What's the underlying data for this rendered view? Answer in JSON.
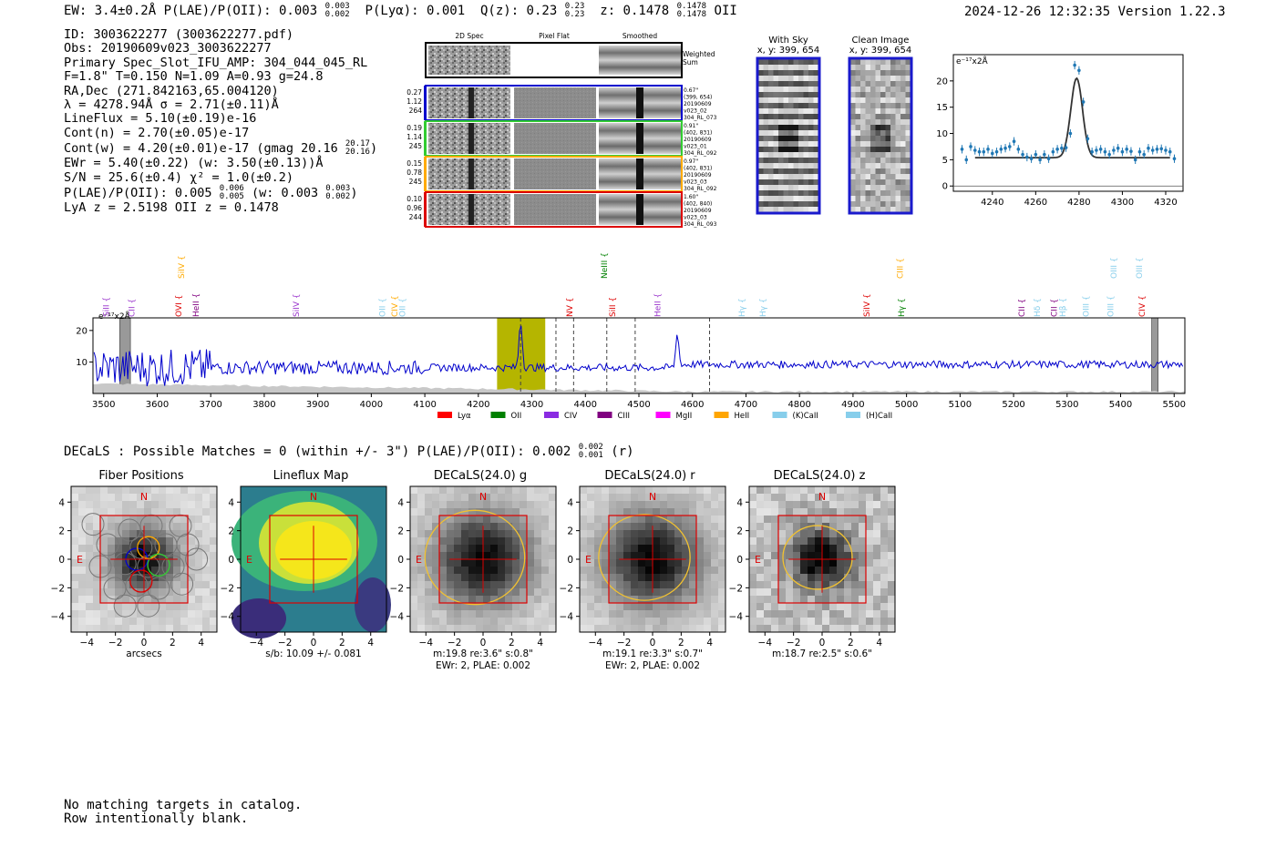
{
  "header": {
    "line": "EW: 3.4±0.2Å  P(LAE)/P(OII): 0.003",
    "plae_hi": "0.003",
    "plae_lo": "0.002",
    "plya": "P(Lyα): 0.001",
    "qz": "Q(z): 0.23",
    "qz_hi": "0.23",
    "qz_lo": "0.23",
    "z": "z: 0.1478",
    "z_hi": "0.1478",
    "z_lo": "0.1478",
    "z_line": "OII",
    "timestamp": "2024-12-26 12:32:35  Version 1.22.3"
  },
  "info": {
    "id": "ID: 3003622277 (3003622277.pdf)",
    "obs": "Obs: 20190609v023_3003622277",
    "primary": "Primary Spec_Slot_IFU_AMP: 304_044_045_RL",
    "params": "F=1.8\"  T=0.150  N=1.09  A=0.93  g=24.8",
    "radec": "RA,Dec (271.842163,65.004120)",
    "lambda": "λ = 4278.94Å   σ = 2.71(±0.11)Å",
    "lineflux": "LineFlux = 5.10(±0.19)e-16",
    "contn": "Cont(n) = 2.70(±0.05)e-17",
    "contw": "Cont(w) = 4.20(±0.01)e-17 (gmag 20.16",
    "gmag_hi": "20.17",
    "gmag_lo": "20.16",
    "ewr": "EWr = 5.40(±0.22) (w: 3.50(±0.13))Å",
    "sn": "S/N = 25.6(±0.4)  χ² = 1.0(±0.2)",
    "plae": "P(LAE)/P(OII): 0.005",
    "plae_hi": "0.006",
    "plae_lo": "0.005",
    "plae_w": "(w: 0.003",
    "plae_w_hi": "0.003",
    "plae_w_lo": "0.002",
    "lyaz": "LyA z = 2.5198   OII z = 0.1478"
  },
  "cutouts": {
    "col_2d": "2D Spec",
    "col_flat": "Pixel Flat",
    "col_smooth": "Smoothed",
    "weighted": "Weighted\nSum",
    "rows": [
      {
        "l1": "0.27",
        "l2": "1.12",
        "l3": "264",
        "r1": "0.67\"",
        "r2": "(399, 654)",
        "r3": "20190609",
        "r4": "v023_02",
        "r5": "304_RL_073",
        "color": "#0000cc"
      },
      {
        "l1": "0.19",
        "l2": "1.14",
        "l3": "245",
        "r1": "0.91\"",
        "r2": "(402, 831)",
        "r3": "20190609",
        "r4": "v023_01",
        "r5": "304_RL_092",
        "color": "#33cc33"
      },
      {
        "l1": "0.15",
        "l2": "0.78",
        "l3": "245",
        "r1": "0.97\"",
        "r2": "(402, 831)",
        "r3": "20190609",
        "r4": "v023_03",
        "r5": "304_RL_092",
        "color": "#ffaa00"
      },
      {
        "l1": "0.10",
        "l2": "0.96",
        "l3": "244",
        "r1": "1.60\"",
        "r2": "(402, 840)",
        "r3": "20190609",
        "r4": "v023_03",
        "r5": "304_RL_093",
        "color": "#dd0000"
      }
    ],
    "with_sky": "With Sky",
    "with_sky_xy": "x, y: 399, 654",
    "clean": "Clean Image",
    "clean_xy": "x, y: 399, 654"
  },
  "chart_data": [
    {
      "type": "scatter",
      "name": "line-fit",
      "ylabel": "e⁻¹⁷x2Å",
      "xlim": [
        4222,
        4328
      ],
      "ylim": [
        -1,
        25
      ],
      "xticks": [
        4240,
        4260,
        4280,
        4300,
        4320
      ],
      "yticks": [
        0,
        5,
        10,
        15,
        20
      ],
      "fit": {
        "center": 4278.9,
        "sigma": 2.71,
        "cont": 5.4,
        "amp": 15.1
      },
      "points": {
        "x": [
          4226,
          4228,
          4230,
          4232,
          4234,
          4236,
          4238,
          4240,
          4242,
          4244,
          4246,
          4248,
          4250,
          4252,
          4254,
          4256,
          4258,
          4260,
          4262,
          4264,
          4266,
          4268,
          4270,
          4272,
          4274,
          4276,
          4278,
          4280,
          4282,
          4284,
          4286,
          4288,
          4290,
          4292,
          4294,
          4296,
          4298,
          4300,
          4302,
          4304,
          4306,
          4308,
          4310,
          4312,
          4314,
          4316,
          4318,
          4320,
          4322,
          4324
        ],
        "y": [
          7.0,
          5.0,
          7.5,
          6.8,
          6.5,
          6.5,
          7.0,
          6.2,
          6.5,
          7.0,
          7.2,
          7.5,
          8.5,
          7.0,
          6.0,
          5.5,
          5.2,
          6.0,
          5.0,
          6.0,
          5.2,
          6.5,
          7.0,
          7.2,
          7.3,
          10.0,
          23.0,
          22.0,
          16.0,
          9.0,
          6.5,
          6.8,
          7.0,
          6.5,
          6.0,
          6.8,
          7.2,
          6.5,
          7.0,
          6.6,
          5.0,
          6.5,
          6.0,
          7.2,
          6.8,
          7.0,
          7.1,
          6.8,
          6.5,
          5.2
        ]
      }
    },
    {
      "type": "line",
      "name": "full-spectrum",
      "ylabel": "e⁻¹⁷x2Å",
      "xlim": [
        3480,
        5520
      ],
      "ylim": [
        0,
        24
      ],
      "xticks": [
        3500,
        3600,
        3700,
        3800,
        3900,
        4000,
        4100,
        4200,
        4300,
        4400,
        4500,
        4600,
        4700,
        4800,
        4900,
        5000,
        5100,
        5200,
        5300,
        5400,
        5500
      ],
      "yticks": [
        10,
        20
      ],
      "highlight": [
        4235,
        4325
      ],
      "dashed": [
        4279,
        4345,
        4378,
        4440,
        4493,
        4632
      ],
      "masked": [
        [
          3530,
          3550
        ],
        [
          5458,
          5470
        ]
      ],
      "peaks": [
        [
          4279,
          23
        ],
        [
          4572,
          19
        ]
      ],
      "line_labels_lower": [
        {
          "x": 3505,
          "t": "SiII",
          "c": "#9933cc"
        },
        {
          "x": 3552,
          "t": "CII",
          "c": "#9933cc"
        },
        {
          "x": 3640,
          "t": "OVI",
          "c": "#dd0000"
        },
        {
          "x": 3672,
          "t": "HeII",
          "c": "#800080"
        },
        {
          "x": 3860,
          "t": "SiIV",
          "c": "#9933cc"
        },
        {
          "x": 4021,
          "t": "OII",
          "c": "#87ceeb"
        },
        {
          "x": 4044,
          "t": "CIV",
          "c": "#ffaa00"
        },
        {
          "x": 4058,
          "t": "OII",
          "c": "#87ceeb"
        },
        {
          "x": 4371,
          "t": "NV",
          "c": "#dd0000"
        },
        {
          "x": 4451,
          "t": "SiII",
          "c": "#dd0000"
        },
        {
          "x": 4535,
          "t": "HeII",
          "c": "#9933cc"
        },
        {
          "x": 4692,
          "t": "Hγ",
          "c": "#87ceeb"
        },
        {
          "x": 4732,
          "t": "Hγ",
          "c": "#87ceeb"
        },
        {
          "x": 4926,
          "t": "SiIV",
          "c": "#dd0000"
        },
        {
          "x": 4990,
          "t": "Hγ",
          "c": "#008000"
        },
        {
          "x": 5215,
          "t": "CII",
          "c": "#800080"
        },
        {
          "x": 5244,
          "t": "Hδ",
          "c": "#87ceeb"
        },
        {
          "x": 5276,
          "t": "CII",
          "c": "#800080"
        },
        {
          "x": 5292,
          "t": "Hβ",
          "c": "#87ceeb"
        },
        {
          "x": 5335,
          "t": "OIII",
          "c": "#87ceeb"
        },
        {
          "x": 5381,
          "t": "OIII",
          "c": "#87ceeb"
        },
        {
          "x": 5440,
          "t": "CIV",
          "c": "#dd0000"
        }
      ],
      "line_labels_upper": [
        {
          "x": 3645,
          "t": "SiIV",
          "c": "#ffaa00"
        },
        {
          "x": 4435,
          "t": "NeIII",
          "c": "#008000"
        },
        {
          "x": 4988,
          "t": "CIII",
          "c": "#ffaa00"
        },
        {
          "x": 5387,
          "t": "OIII",
          "c": "#87ceeb"
        },
        {
          "x": 5435,
          "t": "OIII",
          "c": "#87ceeb"
        }
      ],
      "legend": [
        {
          "t": "Lyα",
          "c": "#ff0000"
        },
        {
          "t": "OII",
          "c": "#008000"
        },
        {
          "t": "CIV",
          "c": "#8a2be2"
        },
        {
          "t": "CIII",
          "c": "#800080"
        },
        {
          "t": "MgII",
          "c": "#ff00ff"
        },
        {
          "t": "HeII",
          "c": "#ffa500"
        },
        {
          "t": "(K)CaII",
          "c": "#87ceeb"
        },
        {
          "t": "(H)CaII",
          "c": "#87ceeb"
        }
      ]
    }
  ],
  "decals_line": "DECaLS : Possible Matches = 0 (within +/- 3\")  P(LAE)/P(OII): 0.002",
  "decals_hi": "0.002",
  "decals_lo": "0.001",
  "decals_r": "(r)",
  "panels": [
    {
      "title": "Fiber Positions",
      "cap1": "arcsecs",
      "cap2": ""
    },
    {
      "title": "Lineflux Map",
      "cap1": "s/b: 10.09 +/- 0.081",
      "cap2": ""
    },
    {
      "title": "DECaLS(24.0) g",
      "cap1": "m:19.8  re:3.6\"  s:0.8\"",
      "cap2": "EWr: 2, PLAE: 0.002"
    },
    {
      "title": "DECaLS(24.0) r",
      "cap1": "m:19.1  re:3.3\"  s:0.7\"",
      "cap2": "EWr: 2, PLAE: 0.002"
    },
    {
      "title": "DECaLS(24.0) z",
      "cap1": "m:18.7  re:2.5\"  s:0.6\"",
      "cap2": ""
    }
  ],
  "panel_ticks": [
    "−4",
    "−2",
    "0",
    "2",
    "4"
  ],
  "compass_n": "N",
  "compass_e": "E",
  "footer": [
    "No matching targets in catalog.",
    "Row intentionally blank."
  ],
  "colors": {
    "spectrum": "#0000cc",
    "fit": "#333333",
    "points": "#1f77b4",
    "highlight": "#b5b500",
    "box": "#dd0000",
    "ellipse": "#f2c230"
  }
}
